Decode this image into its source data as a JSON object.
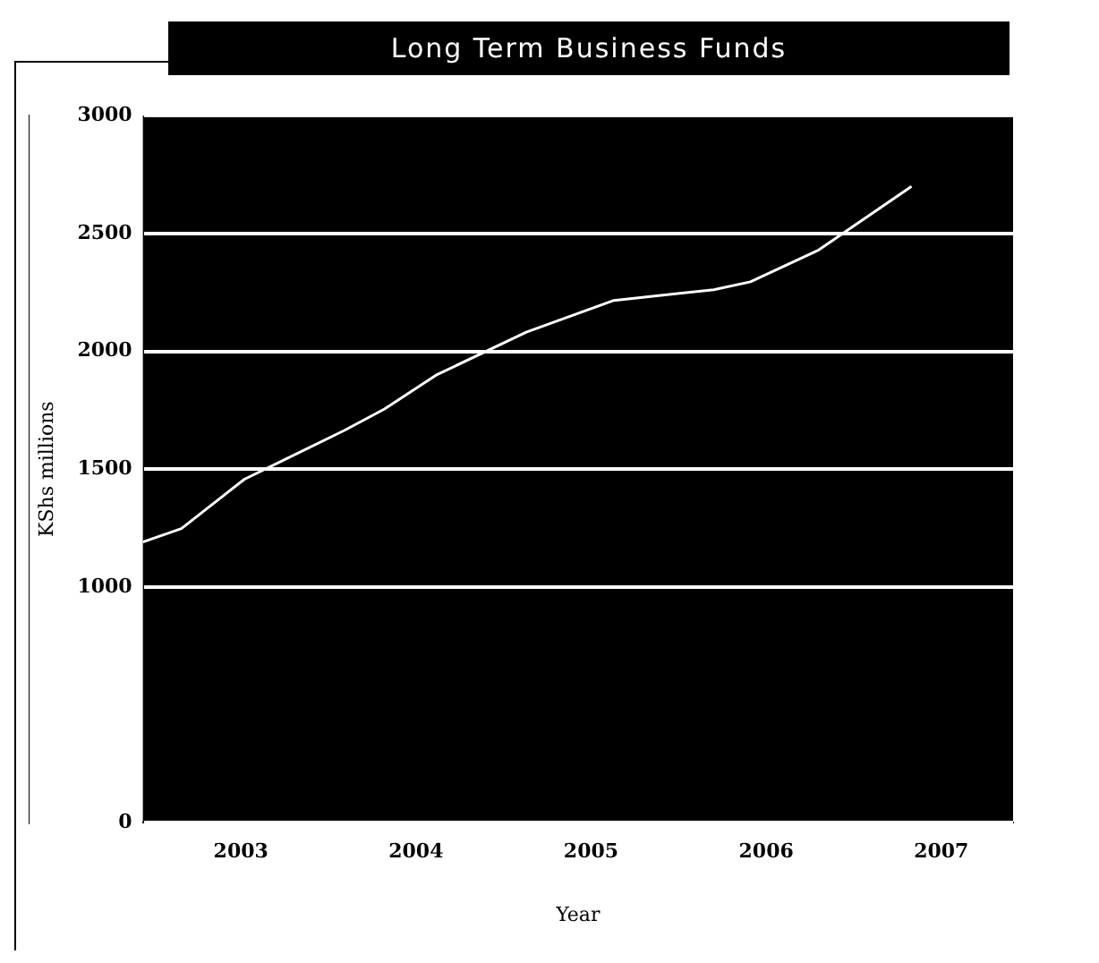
{
  "chart_data": {
    "type": "line",
    "title": "Long Term Business Funds",
    "xlabel": "Year",
    "ylabel": "KShs millions",
    "x": [
      2002.44,
      2002.66,
      2003.02,
      2003.59,
      2003.82,
      2004.12,
      2004.63,
      2005.13,
      2005.7,
      2005.91,
      2006.3,
      2006.83
    ],
    "series": [
      {
        "color": "#ffffff",
        "values": [
          1191,
          1248,
          1457,
          1664,
          1755,
          1901,
          2081,
          2216,
          2261,
          2295,
          2430,
          2700
        ]
      }
    ],
    "xlim": [
      2002.44,
      2007.41
    ],
    "xticks": [
      2003,
      2004,
      2005,
      2006,
      2007
    ],
    "ylim": [
      0,
      3000
    ],
    "yticks": [
      0,
      1000,
      1500,
      2000,
      2500,
      3000
    ],
    "grid": "y",
    "legend": false,
    "marker": "none",
    "line_style": "solid"
  }
}
